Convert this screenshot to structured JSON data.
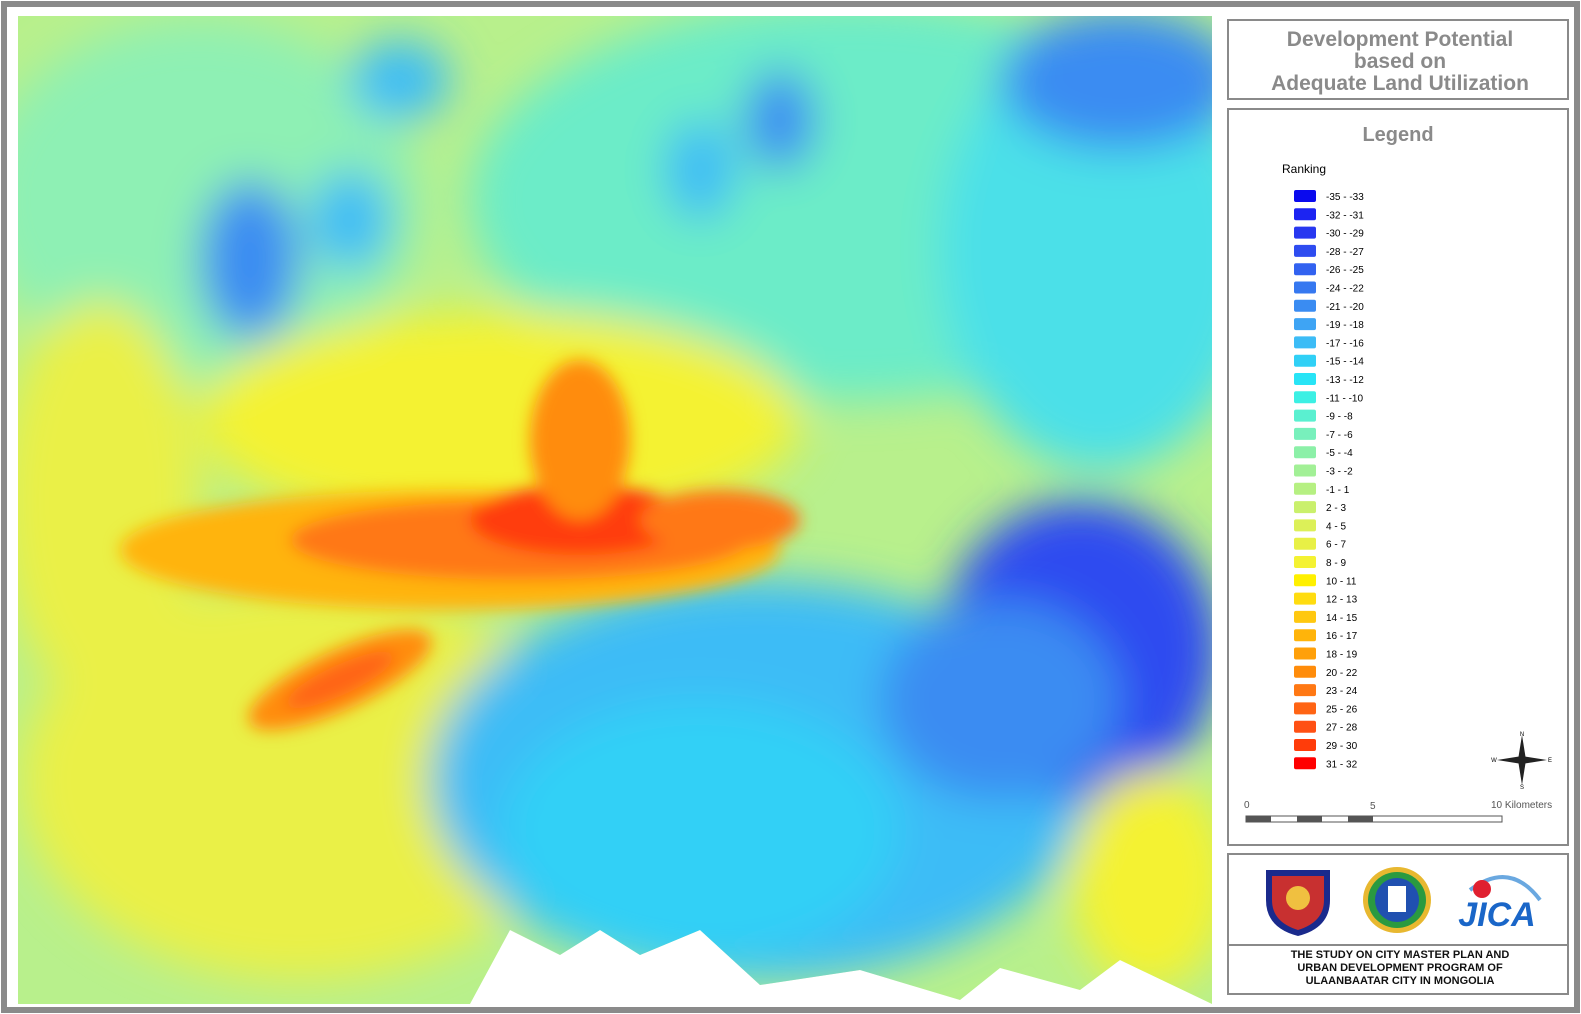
{
  "title": {
    "lines": [
      "Development Potential",
      "based on",
      "Adequate Land Utilization"
    ]
  },
  "legend": {
    "title": "Legend",
    "subtitle": "Ranking",
    "items": [
      {
        "label": "-35 - -33",
        "color": "#0a0aee"
      },
      {
        "label": "-32 - -31",
        "color": "#1c24f2"
      },
      {
        "label": "-30 - -29",
        "color": "#2838f0"
      },
      {
        "label": "-28 - -27",
        "color": "#2e4cf0"
      },
      {
        "label": "-26 - -25",
        "color": "#3262f0"
      },
      {
        "label": "-24 - -22",
        "color": "#3678f0"
      },
      {
        "label": "-21 - -20",
        "color": "#3a8cf2"
      },
      {
        "label": "-19 - -18",
        "color": "#3ea4f4"
      },
      {
        "label": "-17 - -16",
        "color": "#3cbcf6"
      },
      {
        "label": "-15 - -14",
        "color": "#30d0f6"
      },
      {
        "label": "-13 - -12",
        "color": "#28e4f6"
      },
      {
        "label": "-11 - -10",
        "color": "#3cf0e4"
      },
      {
        "label": "-9 - -8",
        "color": "#5af0d0"
      },
      {
        "label": "-7 - -6",
        "color": "#78f0bc"
      },
      {
        "label": "-5 - -4",
        "color": "#8cf0a8"
      },
      {
        "label": "-3 - -2",
        "color": "#a2f096"
      },
      {
        "label": "-1 - 1",
        "color": "#b6f082"
      },
      {
        "label": "2 - 3",
        "color": "#caf06c"
      },
      {
        "label": "4 - 5",
        "color": "#dcf058"
      },
      {
        "label": "6 - 7",
        "color": "#e8f046"
      },
      {
        "label": "8 - 9",
        "color": "#f4f232"
      },
      {
        "label": "10 - 11",
        "color": "#fff000"
      },
      {
        "label": "12 - 13",
        "color": "#ffdc10"
      },
      {
        "label": "14 - 15",
        "color": "#ffc810"
      },
      {
        "label": "16 - 17",
        "color": "#ffb40a"
      },
      {
        "label": "18 - 19",
        "color": "#ffa00a"
      },
      {
        "label": "20 - 22",
        "color": "#ff8c0a"
      },
      {
        "label": "23 - 24",
        "color": "#ff7814"
      },
      {
        "label": "25 - 26",
        "color": "#ff6414"
      },
      {
        "label": "27 - 28",
        "color": "#ff5014"
      },
      {
        "label": "29 - 30",
        "color": "#ff3c0a"
      },
      {
        "label": "31 - 32",
        "color": "#ff0000"
      }
    ]
  },
  "compass": {
    "n": "N",
    "e": "E",
    "s": "S",
    "w": "W"
  },
  "scale_bar": {
    "labels": [
      "0",
      "5",
      "10 Kilometers"
    ]
  },
  "logos": {
    "jica": "JICA"
  },
  "footer": {
    "lines": [
      "THE STUDY ON CITY MASTER PLAN AND",
      "URBAN DEVELOPMENT PROGRAM OF",
      "ULAANBAATAR CITY IN MONGOLIA"
    ]
  }
}
